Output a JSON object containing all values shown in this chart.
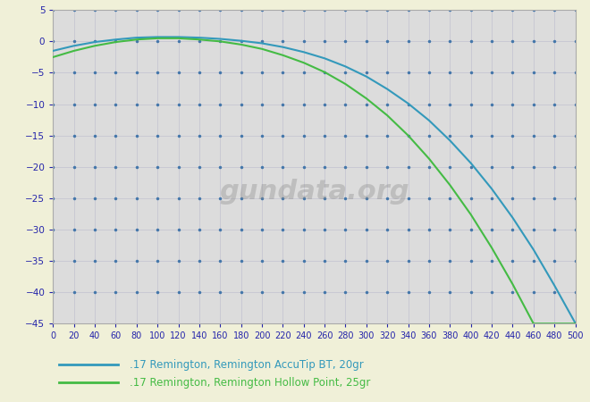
{
  "background_color": "#f0f0d8",
  "plot_bg_color": "#dcdcdc",
  "xlim": [
    0,
    500
  ],
  "ylim": [
    -45,
    5
  ],
  "xticks": [
    0,
    20,
    40,
    60,
    80,
    100,
    120,
    140,
    160,
    180,
    200,
    220,
    240,
    260,
    280,
    300,
    320,
    340,
    360,
    380,
    400,
    420,
    440,
    460,
    480,
    500
  ],
  "yticks": [
    5,
    0,
    -5,
    -10,
    -15,
    -20,
    -25,
    -30,
    -35,
    -40,
    -45
  ],
  "grid_dot_color": "#4477aa",
  "line1_color": "#3399bb",
  "line2_color": "#44bb44",
  "line1_label": ".17 Remington, Remington AccuTip BT, 20gr",
  "line2_label": ".17 Remington, Remington Hollow Point, 25gr",
  "tick_label_color": "#2222aa",
  "line1_x": [
    0,
    20,
    40,
    60,
    80,
    100,
    120,
    140,
    160,
    180,
    200,
    220,
    240,
    260,
    280,
    300,
    320,
    340,
    360,
    380,
    400,
    420,
    440,
    460,
    480,
    500
  ],
  "line1_y": [
    -1.5,
    -0.7,
    -0.1,
    0.3,
    0.6,
    0.7,
    0.7,
    0.6,
    0.4,
    0.1,
    -0.3,
    -0.9,
    -1.7,
    -2.7,
    -4.0,
    -5.6,
    -7.6,
    -9.9,
    -12.6,
    -15.8,
    -19.4,
    -23.5,
    -28.1,
    -33.2,
    -38.9,
    -44.9
  ],
  "line2_x": [
    0,
    20,
    40,
    60,
    80,
    100,
    120,
    140,
    160,
    180,
    200,
    220,
    240,
    260,
    280,
    300,
    320,
    340,
    360,
    380,
    400,
    420,
    440,
    460,
    480,
    500
  ],
  "line2_y": [
    -2.5,
    -1.5,
    -0.7,
    -0.1,
    0.3,
    0.5,
    0.5,
    0.3,
    0.0,
    -0.5,
    -1.2,
    -2.2,
    -3.4,
    -4.9,
    -6.8,
    -9.1,
    -11.8,
    -15.0,
    -18.7,
    -22.9,
    -27.6,
    -32.9,
    -38.7,
    -45.0,
    -45.0,
    -45.0
  ],
  "watermark": "gundata.org"
}
